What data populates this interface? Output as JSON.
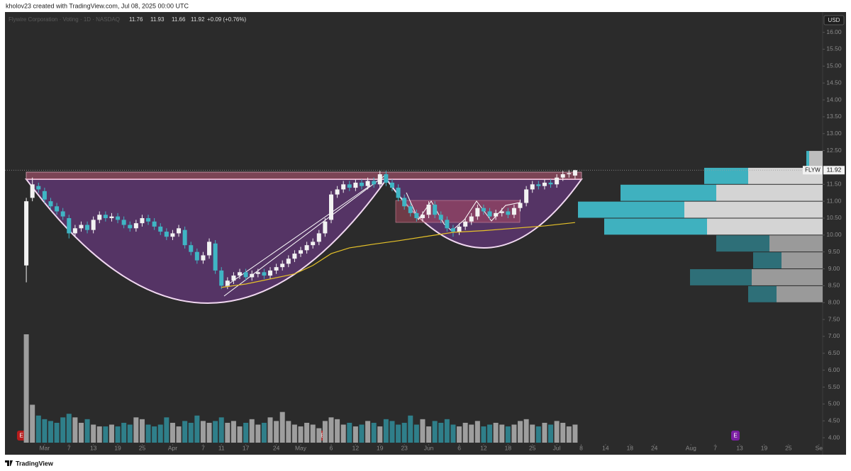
{
  "header": {
    "author_line": "kholov23 created with TradingView.com, Jul 08, 2025 00:00 UTC"
  },
  "chart_data": {
    "type": "candlestick",
    "title": "Flywire Corporation · Voting · 1D · NASDAQ",
    "change": "+0.09 (+0.76%)",
    "symbol": "FLYW",
    "currency": "USD",
    "open": [
      9.1,
      11.1,
      11.45,
      11.3,
      11.0,
      10.85,
      10.7,
      10.5,
      10.05,
      10.2,
      10.3,
      10.15,
      10.45,
      10.6,
      10.5,
      10.55,
      10.45,
      10.3,
      10.2,
      10.35,
      10.5,
      10.4,
      10.25,
      10.1,
      9.95,
      10.05,
      10.15,
      9.7,
      9.5,
      9.25,
      9.4,
      9.75,
      8.95,
      8.5,
      8.65,
      8.8,
      8.9,
      8.75,
      8.85,
      8.9,
      8.8,
      8.95,
      9.05,
      9.15,
      9.3,
      9.45,
      9.55,
      9.7,
      9.8,
      10.05,
      10.45,
      11.2,
      11.35,
      11.5,
      11.4,
      11.55,
      11.45,
      11.6,
      11.5,
      11.8,
      11.55,
      11.4,
      11.1,
      10.85,
      10.65,
      10.5,
      10.6,
      10.9,
      10.6,
      10.45,
      10.2,
      10.1,
      10.25,
      10.4,
      10.55,
      10.8,
      10.7,
      10.55,
      10.65,
      10.7,
      10.6,
      10.8,
      10.95,
      11.35,
      11.5,
      11.45,
      11.55,
      11.5,
      11.7,
      11.8,
      11.76
    ],
    "high": [
      11.1,
      11.7,
      11.55,
      11.4,
      11.1,
      10.95,
      10.8,
      10.6,
      10.3,
      10.4,
      10.4,
      10.55,
      10.7,
      10.7,
      10.65,
      10.65,
      10.55,
      10.4,
      10.45,
      10.6,
      10.6,
      10.5,
      10.35,
      10.2,
      10.15,
      10.3,
      10.25,
      9.8,
      9.6,
      9.5,
      9.9,
      9.85,
      9.05,
      8.75,
      8.9,
      9.0,
      9.0,
      8.95,
      9.0,
      9.0,
      9.05,
      9.15,
      9.25,
      9.4,
      9.55,
      9.65,
      9.8,
      9.9,
      10.15,
      10.5,
      11.3,
      11.45,
      11.6,
      11.6,
      11.65,
      11.65,
      11.7,
      11.7,
      11.9,
      11.9,
      11.65,
      11.5,
      11.2,
      10.95,
      10.75,
      10.7,
      11.0,
      11.0,
      10.7,
      10.55,
      10.3,
      10.35,
      10.5,
      10.65,
      10.9,
      10.9,
      10.8,
      10.75,
      10.8,
      10.8,
      10.9,
      11.05,
      11.45,
      11.6,
      11.6,
      11.65,
      11.65,
      11.8,
      11.9,
      11.93,
      11.93
    ],
    "low": [
      8.6,
      11.0,
      11.25,
      10.95,
      10.75,
      10.6,
      10.45,
      9.9,
      9.95,
      10.1,
      10.05,
      10.05,
      10.35,
      10.4,
      10.4,
      10.35,
      10.2,
      10.1,
      10.1,
      10.25,
      10.3,
      10.15,
      10.0,
      9.85,
      9.85,
      9.95,
      9.6,
      9.4,
      9.15,
      9.15,
      9.3,
      8.85,
      8.4,
      8.4,
      8.55,
      8.7,
      8.65,
      8.65,
      8.75,
      8.7,
      8.7,
      8.85,
      8.95,
      9.05,
      9.2,
      9.35,
      9.45,
      9.6,
      9.7,
      9.95,
      10.35,
      11.1,
      11.25,
      11.3,
      11.3,
      11.35,
      11.35,
      11.4,
      11.4,
      11.45,
      11.3,
      11.0,
      10.75,
      10.55,
      10.4,
      10.4,
      10.5,
      10.5,
      10.35,
      10.1,
      9.95,
      10.0,
      10.15,
      10.3,
      10.45,
      10.6,
      10.45,
      10.45,
      10.55,
      10.5,
      10.5,
      10.7,
      10.85,
      11.25,
      11.35,
      11.35,
      11.4,
      11.4,
      11.6,
      11.7,
      11.66
    ],
    "close": [
      11.0,
      11.5,
      11.35,
      11.05,
      10.85,
      10.7,
      10.55,
      10.05,
      10.2,
      10.3,
      10.15,
      10.45,
      10.6,
      10.5,
      10.55,
      10.45,
      10.3,
      10.2,
      10.35,
      10.5,
      10.4,
      10.25,
      10.1,
      9.95,
      10.05,
      10.2,
      9.7,
      9.5,
      9.25,
      9.4,
      9.8,
      8.95,
      8.5,
      8.65,
      8.8,
      8.9,
      8.75,
      8.85,
      8.9,
      8.8,
      8.95,
      9.05,
      9.15,
      9.3,
      9.45,
      9.55,
      9.7,
      9.8,
      10.05,
      10.4,
      11.2,
      11.35,
      11.5,
      11.4,
      11.55,
      11.45,
      11.6,
      11.5,
      11.8,
      11.55,
      11.4,
      11.1,
      10.85,
      10.65,
      10.5,
      10.6,
      10.9,
      10.6,
      10.45,
      10.2,
      10.1,
      10.25,
      10.4,
      10.55,
      10.8,
      10.7,
      10.55,
      10.65,
      10.7,
      10.6,
      10.8,
      10.95,
      11.35,
      11.5,
      11.45,
      11.55,
      11.5,
      11.7,
      11.8,
      11.83,
      11.92
    ],
    "volume": [
      3.0,
      1.05,
      0.75,
      0.65,
      0.6,
      0.55,
      0.7,
      0.8,
      0.7,
      0.55,
      0.65,
      0.5,
      0.45,
      0.45,
      0.5,
      0.45,
      0.55,
      0.5,
      0.7,
      0.65,
      0.5,
      0.45,
      0.5,
      0.7,
      0.55,
      0.45,
      0.6,
      0.55,
      0.75,
      0.6,
      0.55,
      0.6,
      0.7,
      0.55,
      0.6,
      0.45,
      0.55,
      0.65,
      0.5,
      0.55,
      0.7,
      0.6,
      0.85,
      0.6,
      0.5,
      0.45,
      0.55,
      0.5,
      0.4,
      0.6,
      0.7,
      0.65,
      0.5,
      0.55,
      0.45,
      0.5,
      0.6,
      0.55,
      0.45,
      0.65,
      0.6,
      0.5,
      0.55,
      0.75,
      0.5,
      0.65,
      0.45,
      0.6,
      0.55,
      0.65,
      0.5,
      0.45,
      0.55,
      0.5,
      0.6,
      0.45,
      0.5,
      0.55,
      0.5,
      0.45,
      0.5,
      0.6,
      0.65,
      0.5,
      0.45,
      0.55,
      0.5,
      0.6,
      0.55,
      0.45,
      0.5
    ],
    "up_color": "#f2f2f2",
    "down_color": "#3fb5c4",
    "volume_up_color": "#9e9e9e",
    "volume_down_color": "#2f7f8a",
    "moving_average": {
      "color": "#e6c229",
      "x": [
        32,
        36,
        40,
        44,
        47,
        50,
        53,
        57,
        61,
        66,
        70,
        75,
        80,
        85,
        90
      ],
      "values": [
        8.45,
        8.55,
        8.7,
        8.85,
        9.1,
        9.45,
        9.62,
        9.73,
        9.83,
        9.97,
        10.08,
        10.13,
        10.2,
        10.27,
        10.37
      ]
    },
    "volume_profile": {
      "bins": [
        8.0,
        8.5,
        9.0,
        9.5,
        10.0,
        10.5,
        11.0,
        11.5,
        12.0,
        12.5
      ],
      "down": [
        4,
        8.7,
        4,
        7.5,
        14.5,
        15,
        13.5,
        6.2,
        0.4
      ],
      "up": [
        6.5,
        10,
        5.8,
        7.5,
        16.3,
        19.5,
        15,
        10.5,
        1.9
      ],
      "down_colors": [
        "#2e6f78",
        "#2e6f78",
        "#2e6f78",
        "#2e6f78",
        "#3fb1bf",
        "#3fb1bf",
        "#3fb1bf",
        "#3fb1bf",
        "#3fb1bf"
      ],
      "up_colors": [
        "#9a9a9a",
        "#9a9a9a",
        "#9a9a9a",
        "#9a9a9a",
        "#d4d4d4",
        "#d4d4d4",
        "#d4d4d4",
        "#d4d4d4",
        "#bdbdbd"
      ]
    },
    "events": [
      "E",
      "E",
      "E"
    ],
    "xlim": [
      -3.5,
      130.6
    ],
    "xticks": [
      {
        "value": 3,
        "label": "Mar"
      },
      7,
      {
        "value": 11,
        "label": "13"
      },
      {
        "value": 15,
        "label": "19"
      },
      {
        "value": 19,
        "label": "25"
      },
      {
        "value": 24,
        "label": "Apr"
      },
      {
        "value": 29,
        "label": "7"
      },
      {
        "value": 32,
        "label": "11"
      },
      {
        "value": 36,
        "label": "17"
      },
      {
        "value": 41,
        "label": "24"
      },
      {
        "value": 45,
        "label": "May"
      },
      {
        "value": 50,
        "label": "6"
      },
      {
        "value": 54,
        "label": "12"
      },
      {
        "value": 58,
        "label": "19"
      },
      {
        "value": 62,
        "label": "23"
      },
      {
        "value": 66,
        "label": "Jun"
      },
      {
        "value": 71,
        "label": "6"
      },
      {
        "value": 75,
        "label": "12"
      },
      {
        "value": 79,
        "label": "18"
      },
      {
        "value": 83,
        "label": "25"
      },
      {
        "value": 87,
        "label": "Jul"
      },
      {
        "value": 91,
        "label": "8"
      },
      {
        "value": 95,
        "label": "14"
      },
      {
        "value": 99,
        "label": "18"
      },
      {
        "value": 103,
        "label": "24"
      },
      {
        "value": 109,
        "label": "Aug"
      },
      {
        "value": 113,
        "label": "7"
      },
      {
        "value": 117,
        "label": "13"
      },
      {
        "value": 121,
        "label": "19"
      },
      {
        "value": 125,
        "label": "25"
      },
      {
        "value": 130,
        "label": "Se"
      }
    ],
    "ylim": [
      3.54,
      16.6
    ],
    "yticks": [
      {
        "value": 16,
        "label": "16.00"
      },
      {
        "value": 15.5,
        "label": "15.50"
      },
      {
        "value": 15,
        "label": "15.00"
      },
      {
        "value": 14.5,
        "label": "14.50"
      },
      {
        "value": 14,
        "label": "14.00"
      },
      {
        "value": 13.5,
        "label": "13.50"
      },
      {
        "value": 13,
        "label": "13.00"
      },
      {
        "value": 12.5,
        "label": "12.50"
      },
      {
        "value": 11.5,
        "label": "11.50"
      },
      {
        "value": 11,
        "label": "11.00"
      },
      {
        "value": 10.5,
        "label": "10.50"
      },
      {
        "value": 10,
        "label": "10.00"
      },
      {
        "value": 9.5,
        "label": "9.50"
      },
      {
        "value": 9,
        "label": "9.00"
      },
      {
        "value": 8.5,
        "label": "8.50"
      },
      {
        "value": 8,
        "label": "8.00"
      },
      {
        "value": 7.5,
        "label": "7.50"
      },
      {
        "value": 7,
        "label": "7.00"
      },
      {
        "value": 6.5,
        "label": "6.50"
      },
      {
        "value": 6,
        "label": "6.00"
      },
      {
        "value": 5.5,
        "label": "5.50"
      },
      {
        "value": 5,
        "label": "5.00"
      },
      {
        "value": 4.5,
        "label": "4.50"
      },
      {
        "value": 4,
        "label": "4.00"
      }
    ]
  },
  "footer": {
    "brand": "TradingView"
  }
}
